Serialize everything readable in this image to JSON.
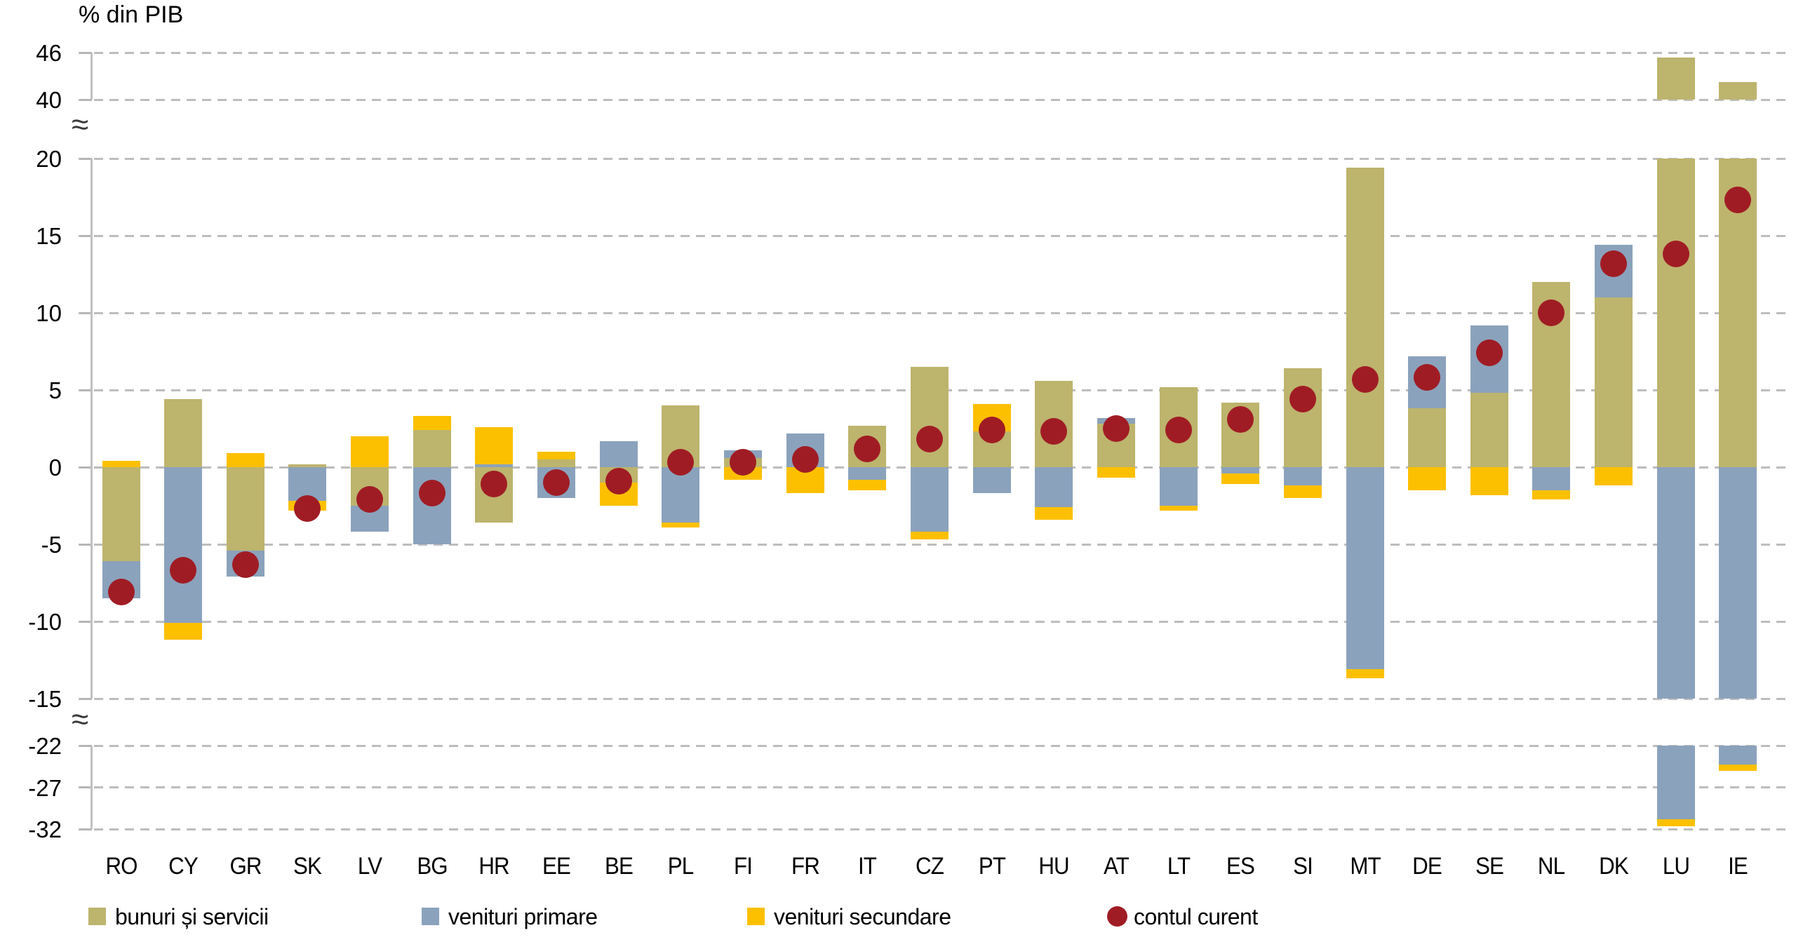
{
  "title": "% din PIB",
  "chart_data": {
    "type": "bar",
    "subtype": "stacked-bars-with-point-markers",
    "title": "% din PIB",
    "categories": [
      "RO",
      "CY",
      "GR",
      "SK",
      "LV",
      "BG",
      "HR",
      "EE",
      "BE",
      "PL",
      "FI",
      "FR",
      "IT",
      "CZ",
      "PT",
      "HU",
      "AT",
      "LT",
      "ES",
      "SI",
      "MT",
      "DE",
      "SE",
      "NL",
      "DK",
      "LU",
      "IE"
    ],
    "series": [
      {
        "name": "bunuri și servicii",
        "kind": "bar",
        "color": "#bdb46d",
        "values": [
          -6.1,
          4.4,
          -5.4,
          0.2,
          -2.5,
          2.4,
          -3.6,
          0.5,
          -1.0,
          4.0,
          0.6,
          0.0,
          2.7,
          6.5,
          2.3,
          5.6,
          2.8,
          5.2,
          4.2,
          6.4,
          19.4,
          3.8,
          4.8,
          12.0,
          11.0,
          45.4,
          42.2
        ]
      },
      {
        "name": "venituri primare",
        "kind": "bar",
        "color": "#8ba2bc",
        "values": [
          -2.4,
          -10.1,
          -1.7,
          -2.2,
          -1.7,
          -5.0,
          0.2,
          -2.0,
          1.7,
          -3.6,
          0.5,
          2.2,
          -0.8,
          -4.2,
          -1.7,
          -2.6,
          0.4,
          -2.5,
          -0.4,
          -1.2,
          -13.1,
          3.4,
          4.4,
          -1.5,
          3.4,
          -30.8,
          -24.3
        ]
      },
      {
        "name": "venituri secundare",
        "kind": "bar",
        "color": "#fdc000",
        "values": [
          0.4,
          -1.1,
          0.9,
          -0.6,
          2.0,
          0.9,
          2.4,
          0.5,
          -1.5,
          -0.3,
          -0.8,
          -1.7,
          -0.7,
          -0.5,
          1.8,
          -0.8,
          -0.7,
          -0.3,
          -0.7,
          -0.8,
          -0.6,
          -1.5,
          -1.8,
          -0.6,
          -1.2,
          -0.9,
          -0.7
        ]
      },
      {
        "name": "contul curent",
        "kind": "marker",
        "color": "#a01c24",
        "values": [
          -8.1,
          -6.7,
          -6.3,
          -2.7,
          -2.1,
          -1.7,
          -1.1,
          -1.0,
          -0.9,
          0.3,
          0.3,
          0.5,
          1.2,
          1.8,
          2.4,
          2.3,
          2.5,
          2.4,
          3.1,
          4.4,
          5.7,
          5.8,
          7.4,
          10.0,
          13.2,
          13.8,
          17.3
        ]
      }
    ],
    "y_axis": {
      "break_symbol": "≈",
      "broken_axis": true,
      "sections": [
        [
          46,
          40
        ],
        [
          20,
          15,
          10,
          5,
          0,
          -5,
          -10,
          -15
        ],
        [
          -22,
          -27,
          -32
        ]
      ]
    },
    "x_axis": {
      "label": "",
      "tick_labels_are_country_codes": true
    },
    "grid": "dashed-horizontal",
    "legend_position": "bottom"
  },
  "legend": {
    "items": [
      "bunuri și servicii",
      "venituri primare",
      "venituri secundare",
      "contul curent"
    ]
  }
}
